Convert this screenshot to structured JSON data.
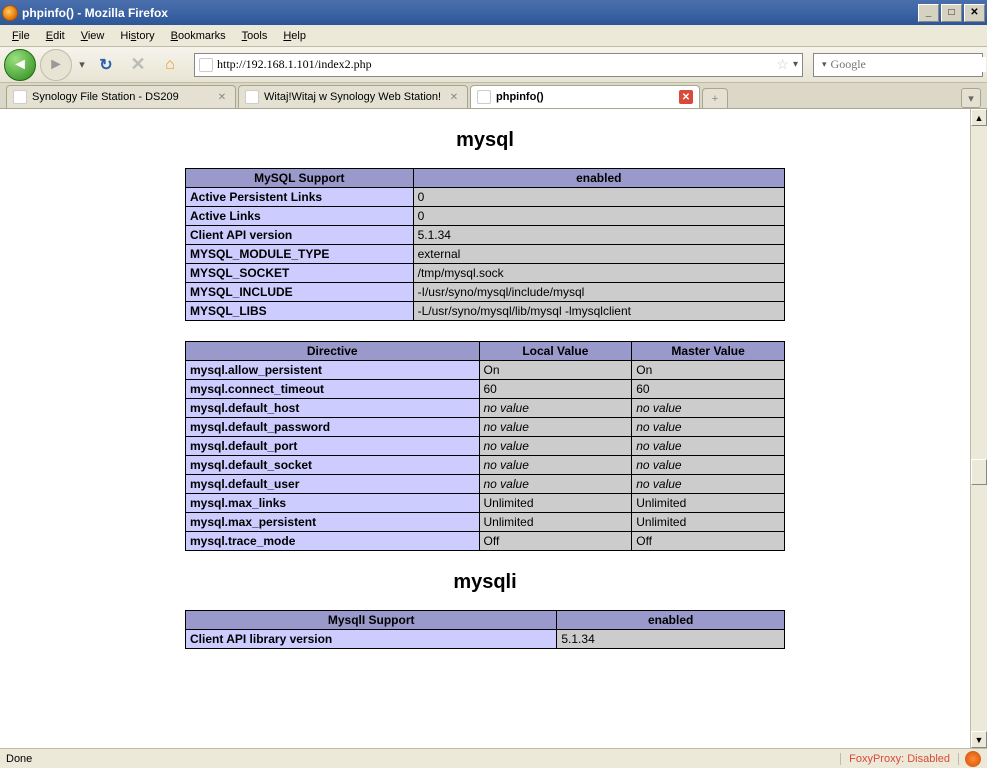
{
  "window": {
    "title": "phpinfo() - Mozilla Firefox"
  },
  "menu": {
    "file": "File",
    "edit": "Edit",
    "view": "View",
    "history": "History",
    "bookmarks": "Bookmarks",
    "tools": "Tools",
    "help": "Help"
  },
  "toolbar": {
    "url": "http://192.168.1.101/index2.php",
    "search_placeholder": "Google"
  },
  "tabs": [
    {
      "label": "Synology File Station - DS209",
      "active": false
    },
    {
      "label": "Witaj!Witaj w Synology Web Station!",
      "active": false
    },
    {
      "label": "phpinfo()",
      "active": true
    }
  ],
  "sections": [
    {
      "title": "mysql",
      "header_cols": [
        "MySQL Support",
        "enabled"
      ],
      "rows": [
        [
          "Active Persistent Links",
          "0"
        ],
        [
          "Active Links",
          "0"
        ],
        [
          "Client API version",
          "5.1.34"
        ],
        [
          "MYSQL_MODULE_TYPE",
          "external"
        ],
        [
          "MYSQL_SOCKET",
          "/tmp/mysql.sock"
        ],
        [
          "MYSQL_INCLUDE",
          "-I/usr/syno/mysql/include/mysql"
        ],
        [
          "MYSQL_LIBS",
          "-L/usr/syno/mysql/lib/mysql -lmysqlclient"
        ]
      ],
      "directives_header": [
        "Directive",
        "Local Value",
        "Master Value"
      ],
      "directives": [
        [
          "mysql.allow_persistent",
          "On",
          "On"
        ],
        [
          "mysql.connect_timeout",
          "60",
          "60"
        ],
        [
          "mysql.default_host",
          "no value",
          "no value"
        ],
        [
          "mysql.default_password",
          "no value",
          "no value"
        ],
        [
          "mysql.default_port",
          "no value",
          "no value"
        ],
        [
          "mysql.default_socket",
          "no value",
          "no value"
        ],
        [
          "mysql.default_user",
          "no value",
          "no value"
        ],
        [
          "mysql.max_links",
          "Unlimited",
          "Unlimited"
        ],
        [
          "mysql.max_persistent",
          "Unlimited",
          "Unlimited"
        ],
        [
          "mysql.trace_mode",
          "Off",
          "Off"
        ]
      ]
    },
    {
      "title": "mysqli",
      "header_cols": [
        "MysqlI Support",
        "enabled"
      ],
      "rows": [
        [
          "Client API library version",
          "5.1.34"
        ]
      ]
    }
  ],
  "statusbar": {
    "done": "Done",
    "foxy": "FoxyProxy: Disabled"
  },
  "colors": {
    "php_header_bg": "#9999cc",
    "php_key_bg": "#ccccff",
    "php_val_bg": "#cccccc",
    "chrome_bg": "#ece9d8"
  }
}
